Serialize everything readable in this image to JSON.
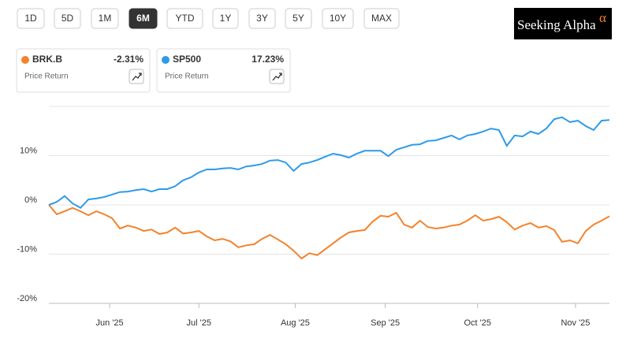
{
  "ui": {
    "periods": [
      "1D",
      "5D",
      "1M",
      "6M",
      "YTD",
      "1Y",
      "3Y",
      "5Y",
      "10Y",
      "MAX"
    ],
    "active_period": "6M",
    "logo": "Seeking Alpha",
    "logo_mark": "α",
    "cards": [
      {
        "name": "BRK.B",
        "change": "-2.31%",
        "caption": "Price Return",
        "color": "#f4822b"
      },
      {
        "name": "SP500",
        "change": "17.23%",
        "caption": "Price Return",
        "color": "#2d9be8"
      }
    ]
  },
  "chart_data": {
    "type": "line",
    "x": [
      0,
      1,
      2,
      3,
      4,
      5,
      6,
      7,
      8,
      9,
      10,
      11,
      12,
      13,
      14,
      15,
      16,
      17,
      18,
      19,
      20,
      21,
      22,
      23,
      24,
      25,
      26,
      27,
      28,
      29,
      30,
      31,
      32,
      33,
      34,
      35,
      36,
      37,
      38,
      39,
      40,
      41,
      42,
      43,
      44,
      45,
      46,
      47,
      48,
      49,
      50,
      51,
      52,
      53,
      54,
      55,
      56,
      57,
      58,
      59,
      60,
      61,
      62,
      63,
      64,
      65,
      66,
      67,
      68,
      69,
      70,
      71
    ],
    "xlim": [
      0,
      71
    ],
    "xticks": [
      {
        "value": 7.7,
        "label": "Jun '25"
      },
      {
        "value": 19.0,
        "label": "Jul '25"
      },
      {
        "value": 31.2,
        "label": "Aug '25"
      },
      {
        "value": 42.6,
        "label": "Sep '25"
      },
      {
        "value": 54.3,
        "label": "Oct '25"
      },
      {
        "value": 66.7,
        "label": "Nov '25"
      }
    ],
    "ylim": [
      -20,
      20
    ],
    "yticks": [
      {
        "value": 10,
        "label": "10%"
      },
      {
        "value": 0,
        "label": "0%"
      },
      {
        "value": -10,
        "label": "-10%"
      },
      {
        "value": -20,
        "label": "-20%"
      }
    ],
    "grid": true,
    "series": [
      {
        "name": "BRK.B",
        "color": "#f4822b",
        "values": [
          0,
          -1.9,
          -1.3,
          -0.6,
          -1.3,
          -2.1,
          -1.3,
          -1.9,
          -2.7,
          -4.8,
          -4.2,
          -4.6,
          -5.3,
          -5.0,
          -5.9,
          -5.6,
          -4.6,
          -5.8,
          -5.6,
          -5.3,
          -6.4,
          -7.2,
          -6.9,
          -7.4,
          -8.6,
          -8.2,
          -8.0,
          -6.9,
          -6.1,
          -7.0,
          -8.0,
          -9.3,
          -10.9,
          -9.8,
          -10.2,
          -9.0,
          -7.8,
          -6.6,
          -5.6,
          -5.3,
          -5.1,
          -3.4,
          -2.2,
          -2.4,
          -1.6,
          -4.0,
          -4.6,
          -3.2,
          -4.5,
          -4.8,
          -4.6,
          -4.2,
          -4.0,
          -3.2,
          -2.1,
          -3.2,
          -2.9,
          -2.4,
          -3.5,
          -5.0,
          -4.2,
          -3.7,
          -4.6,
          -4.3,
          -5.1,
          -7.5,
          -7.2,
          -7.8,
          -5.3,
          -4.0,
          -3.2,
          -2.31
        ]
      },
      {
        "name": "SP500",
        "color": "#2d9be8",
        "values": [
          0,
          0.6,
          1.8,
          0.3,
          -0.6,
          1.1,
          1.3,
          1.6,
          2.1,
          2.6,
          2.7,
          3.0,
          3.2,
          2.7,
          3.2,
          3.2,
          3.8,
          5.0,
          5.6,
          6.6,
          7.2,
          7.2,
          7.4,
          7.5,
          7.2,
          7.8,
          8.0,
          8.3,
          9.0,
          9.1,
          8.6,
          6.9,
          8.3,
          8.6,
          9.1,
          9.8,
          10.4,
          10.1,
          9.6,
          10.4,
          11.0,
          11.0,
          11.0,
          9.9,
          11.2,
          11.7,
          12.2,
          12.3,
          13.0,
          13.1,
          13.6,
          14.1,
          13.3,
          14.1,
          14.4,
          14.9,
          15.5,
          15.2,
          12.0,
          14.1,
          13.9,
          14.9,
          14.4,
          15.5,
          17.4,
          17.8,
          16.8,
          17.1,
          16.0,
          15.2,
          17.1,
          17.23
        ]
      }
    ]
  }
}
